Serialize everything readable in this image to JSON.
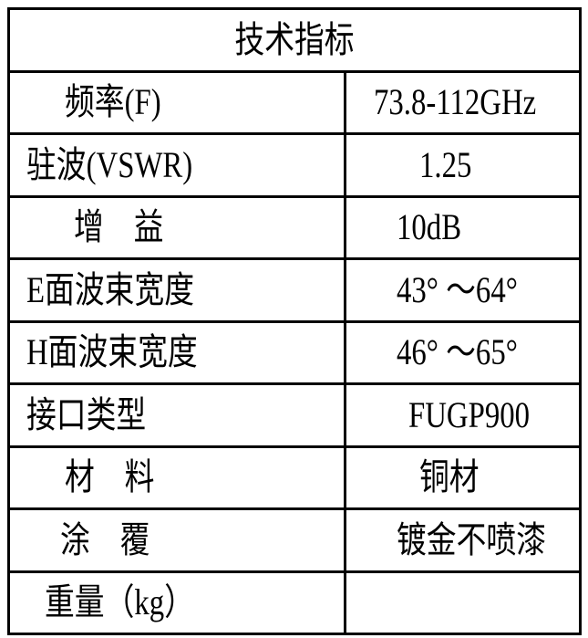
{
  "table": {
    "title": "技术指标",
    "rows": [
      {
        "label": "频率(F)",
        "value": "73.8-112GHz"
      },
      {
        "label": "驻波(VSWR)",
        "value": "1.25"
      },
      {
        "label": "增　益",
        "value": "10dB"
      },
      {
        "label": "E面波束宽度",
        "value": "43° ～64°"
      },
      {
        "label": "H面波束宽度",
        "value": "46° ～65°"
      },
      {
        "label": "接口类型",
        "value": "FUGP900"
      },
      {
        "label": "材　料",
        "value": "铜材"
      },
      {
        "label": "涂　覆",
        "value": "镀金不喷漆"
      },
      {
        "label": "重量（kg）",
        "value": ""
      }
    ]
  }
}
